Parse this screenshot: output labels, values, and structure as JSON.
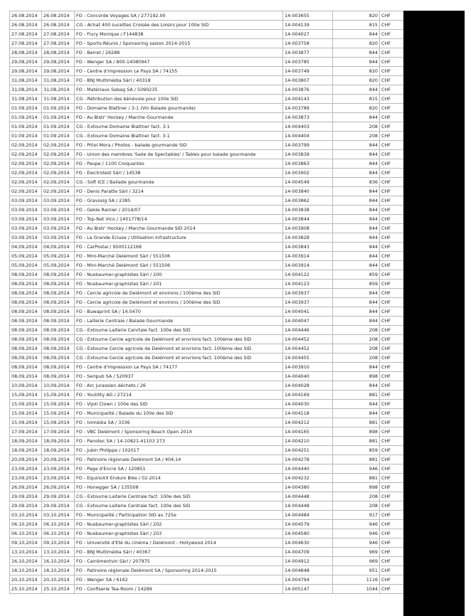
{
  "table": {
    "rows": [
      [
        "26.08.2014",
        "26.08.2014",
        "FO - Concorde Voyages SA / 277192.00",
        "14-003655",
        "820",
        "CHF"
      ],
      [
        "26.08.2014",
        "26.08.2014",
        "CG - Achat 400 sucettes Croisée des Loisirs pour 100e SID",
        "14-004139",
        "815",
        "CHF"
      ],
      [
        "27.08.2014",
        "27.08.2014",
        "FO - Flury Monique / F144838",
        "14-004027",
        "844",
        "CHF"
      ],
      [
        "27.08.2014",
        "27.08.2014",
        "FO - Sports-Réunis / Sponsoring saison 2014-2015",
        "14-003758",
        "820",
        "CHF"
      ],
      [
        "28,08,2014",
        "28,08,2014",
        "FO - Berret / 26288",
        "14-003877",
        "844",
        "CHF"
      ],
      [
        "29,08,2014",
        "29,08,2014",
        "FO - Wenger SA / 800-14080947",
        "14-003785",
        "844",
        "CHF"
      ],
      [
        "29,08,2014",
        "29,08,2014",
        "FO - Centre d'impression Le Pays SA / 74155",
        "14-003749",
        "820",
        "CHF"
      ],
      [
        "31,08,2014",
        "31,08,2014",
        "FO - BNJ Multimédia Sàrl / 40318",
        "14-003807",
        "820",
        "CHF"
      ],
      [
        "31,08,2014",
        "31,08,2014",
        "FO - Matériaux Sabag SA / 5090235",
        "14-003876",
        "844",
        "CHF"
      ],
      [
        "31.08.2014",
        "31.08.2014",
        "CG - Rétribution des bénévole pour 100e SID",
        "14-004143",
        "815",
        "CHF"
      ],
      [
        "01.09.2014",
        "01.09.2014",
        "FO - Domaine Blattner / 3-1 (Vin Balade gourmande)",
        "14-003789",
        "820",
        "CHF"
      ],
      [
        "01.09.2014",
        "01.09.2014",
        "FO - Au Bistr' Hockey / Marche Gourmande",
        "14-003873",
        "844",
        "CHF"
      ],
      [
        "01.09.2014",
        "01.09.2014",
        "CG - Extourne Domaine Blattner fact. 3-1",
        "14-004403",
        "208",
        "CHF"
      ],
      [
        "01.09.2014",
        "01.09.2014",
        "CG - Extourne Domaine Blattner fact. 3-1",
        "14-004404",
        "208",
        "CHF"
      ],
      [
        "02,09,2014",
        "02,09,2014",
        "FO - Piñol Mora / Photos - balade gourmande SID",
        "14-003799",
        "844",
        "CHF"
      ],
      [
        "02,09,2014",
        "02,09,2014",
        "FO - Union des membres 'Salle de Spectables' / Tables pour balade gourmande",
        "14-003839",
        "844",
        "CHF"
      ],
      [
        "02,09,2014",
        "02,09,2014",
        "FO - Paupe / 1100 Croquantes",
        "14-003863",
        "844",
        "CHF"
      ],
      [
        "02,09,2014",
        "02,09,2014",
        "FO - Electrotest Sàrl / 14538",
        "14-003902",
        "844",
        "CHF"
      ],
      [
        "02,09,2014",
        "02,09,2014",
        "CG - Soft ICE / Ballade gourmande",
        "14-004549",
        "836",
        "CHF"
      ],
      [
        "02,09,2014",
        "02,09,2014",
        "FO - Denis Paratte Sàrl / 3214",
        "14-003840",
        "844",
        "CHF"
      ],
      [
        "03.09.2014",
        "03.09.2014",
        "FO - Gravosig SA / 2385",
        "14-003862",
        "844",
        "CHF"
      ],
      [
        "03.09.2014",
        "03.09.2014",
        "FO - Gekle Rainier / 2014/07",
        "14-003838",
        "844",
        "CHF"
      ],
      [
        "03.09.2014",
        "03.09.2014",
        "FO - Top-Net Vico / 1401778/14",
        "14-003844",
        "844",
        "CHF"
      ],
      [
        "03.09.2014",
        "03.09.2014",
        "FO - Au Bistr' Hockey / Marche Gourmande SID 2014",
        "14-003908",
        "844",
        "CHF"
      ],
      [
        "03.09.2014",
        "03.09.2014",
        "FO - La Grande Ecluse / Utilisation infrastructure",
        "14-003828",
        "844",
        "CHF"
      ],
      [
        "04,09,2014",
        "04,09,2014",
        "FO - CarPostal / 9500112168",
        "14-003843",
        "844",
        "CHF"
      ],
      [
        "05,09,2014",
        "05,09,2014",
        "FO - Mini-Marché Delémont Sàrl / 551506",
        "14-003914",
        "844",
        "CHF"
      ],
      [
        "05,09,2014",
        "05,09,2014",
        "FO - Mini-Marché Delémont Sàrl / 551506",
        "14-003914",
        "844",
        "CHF"
      ],
      [
        "08,09,2014",
        "08,09,2014",
        "FO - Nusbaumer-graphistes Sàrl / 200",
        "14-004122",
        "859",
        "CHF"
      ],
      [
        "08,09,2014",
        "08,09,2014",
        "FO - Nusbaumer-graphistes Sàrl / 201",
        "14-004123",
        "859",
        "CHF"
      ],
      [
        "08,09,2014",
        "08,09,2014",
        "FO - Cercle agricole de Delémont et environs / 100ème des SID",
        "14-003937",
        "844",
        "CHF"
      ],
      [
        "08,09,2014",
        "08,09,2014",
        "FO - Cercle agricole de Delémont et environs / 100ème des SID",
        "14-003937",
        "844",
        "CHF"
      ],
      [
        "08,09,2014",
        "08,09,2014",
        "FO - Buwaprint SA / 14.0470",
        "14-004041",
        "844",
        "CHF"
      ],
      [
        "08.09.2014",
        "08.09.2014",
        "FO - Laiterie Centrale / Balade Gourmande",
        "14-004047",
        "844",
        "CHF"
      ],
      [
        "08.09.2014",
        "08.09.2014",
        "CG - Extourne Laiterie Cenrtale fact. 100e des SID",
        "14-004446",
        "208",
        "CHF"
      ],
      [
        "08.09.2014",
        "08.09.2014",
        "CG - Extourne Cercle agricole de Delémont et envrions fact. 100ème des SID",
        "14-004452",
        "208",
        "CHF"
      ],
      [
        "08,09,2014",
        "08,09,2014",
        "CG - Extourne Cercle agricole de Delémont et envrions fact. 100ème des SID",
        "14-004452",
        "208",
        "CHF"
      ],
      [
        "08,09,2014",
        "08,09,2014",
        "CG - Extourne Cercle agricole de Delémont et envrions fact. 100ème des SID",
        "14-004455",
        "208",
        "CHF"
      ],
      [
        "08,09,2014",
        "08,09,2014",
        "FO - Centre d'impression Le Pays SA / 74177",
        "14-003910",
        "844",
        "CHF"
      ],
      [
        "08,09,2014",
        "08,09,2014",
        "FO - Seripub SA / 520937",
        "14-004040",
        "898",
        "CHF"
      ],
      [
        "10,09,2014",
        "10,09,2014",
        "FO - Arc jurassien déchets / 26",
        "14-004028",
        "844",
        "CHF"
      ],
      [
        "15,09,2014",
        "15,09,2014",
        "FO - Youtility AG / 27214",
        "14-004169",
        "881",
        "CHF"
      ],
      [
        "15.09.2014",
        "15.09.2014",
        "FO - Vijoli Clown / 100e des SID",
        "14-004030",
        "844",
        "CHF"
      ],
      [
        "15.09.2014",
        "15.09.2014",
        "FO - Municipalité / Balade du 100e des SID",
        "14-004118",
        "844",
        "CHF"
      ],
      [
        "15.09.2014",
        "15.09.2014",
        "FO - Ivimédia SA / 3336",
        "14-004212",
        "881",
        "CHF"
      ],
      [
        "17.09.2014",
        "17.09.2014",
        "FO - VBC Delémont / Sponsoring Beach Open 2014",
        "14-004165",
        "898",
        "CHF"
      ],
      [
        "18,09,2014",
        "18,09,2014",
        "FO - Panotec SA / 14-10821-41103 273",
        "14-004210",
        "881",
        "CHF"
      ],
      [
        "18,09,2014",
        "18,09,2014",
        "FO - Jubin Philippe / 102017",
        "14-004251",
        "859",
        "CHF"
      ],
      [
        "20,09,2014",
        "20,09,2014",
        "FO - Patinoire régionale Delémont SA / 404,14",
        "14-004278",
        "881",
        "CHF"
      ],
      [
        "23,09,2014",
        "23,09,2014",
        "FO - Page d'Encre SA / 120851",
        "14-004440",
        "946",
        "CHF"
      ],
      [
        "23,09,2014",
        "23,09,2014",
        "FO - EquinoXX Enduro Bike / 02-2014",
        "14-004232",
        "881",
        "CHF"
      ],
      [
        "26,09,2014",
        "26,09,2014",
        "FO - Honegger SA / 135508",
        "14-004380",
        "898",
        "CHF"
      ],
      [
        "29.09.2014",
        "29.09.2014",
        "CG - Extourne Laiterie Centrale fact. 100e des SID",
        "14-004448",
        "208",
        "CHF"
      ],
      [
        "29.09.2014",
        "29.09.2014",
        "CG - Extourne Laiterie Centrale fact. 100e des SID",
        "14-004448",
        "208",
        "CHF"
      ],
      [
        "03.10.2014",
        "03.10.2014",
        "FO - Municipalité / Participation SID au 725e",
        "14-004484",
        "917",
        "CHF"
      ],
      [
        "06.10.2014",
        "06.10.2014",
        "FO - Nusbaumer-graphistes Sàrl / 202",
        "14-004579",
        "946",
        "CHF"
      ],
      [
        "06.10.2014",
        "06.10.2014",
        "FO - Nusbaumer-graphistes Sàrl / 203",
        "14-004580",
        "946",
        "CHF"
      ],
      [
        "09,10,2014",
        "09,10,2014",
        "FO - Université d'Eté du cinéma / Delémont - Hollywood 2014",
        "14-004630",
        "946",
        "CHF"
      ],
      [
        "13,10,2014",
        "13,10,2014",
        "FO - BNJ Multimédia Sàrl / 40367",
        "14-004709",
        "969",
        "CHF"
      ],
      [
        "16,10,2014",
        "16,10,2014",
        "FO - Carrémentvin Sàrl / 207975",
        "14-004912",
        "969",
        "CHF"
      ],
      [
        "18,10,2014",
        "18,10,2014",
        "FO - Patinoire régionale Delémont SA / Sponsoring 2014-2015",
        "14-004848",
        "951",
        "CHF"
      ],
      [
        "20,10,2014",
        "20,10,2014",
        "FO - Wenger SA / 6162",
        "14-004794",
        "1116",
        "CHF"
      ],
      [
        "25.10.2014",
        "25.10.2014",
        "FO - Confiserie Tea-Room / 14289",
        "14-005147",
        "1044",
        "CHF"
      ]
    ]
  },
  "colors": {
    "redaction": "#000000",
    "grid": "#b8b8b8"
  }
}
